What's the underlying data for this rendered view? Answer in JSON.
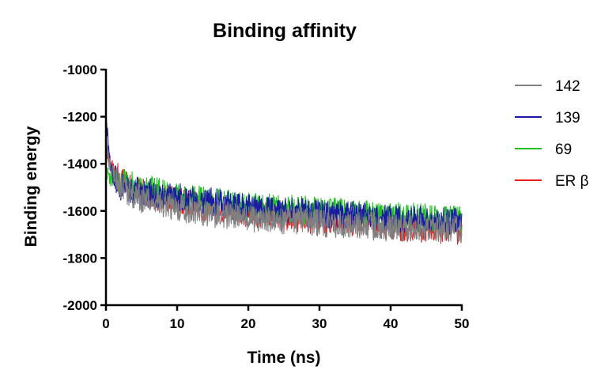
{
  "chart_data": {
    "type": "line",
    "title": "Binding affinity",
    "xlabel": "Time (ns)",
    "ylabel": "Binding energy",
    "xlim": [
      0,
      50
    ],
    "ylim": [
      -2000,
      -1000
    ],
    "xticks": [
      0,
      10,
      20,
      30,
      40,
      50
    ],
    "yticks": [
      -1000,
      -1200,
      -1400,
      -1600,
      -1800,
      -2000
    ],
    "xtick_labels": [
      "0",
      "10",
      "20",
      "30",
      "40",
      "50"
    ],
    "ytick_labels": [
      "-1000",
      "-1200",
      "-1400",
      "-1600",
      "-1800",
      "-2000"
    ],
    "grid": false,
    "legend_position": "right",
    "series": [
      {
        "name": "142",
        "color": "#808080",
        "x": [
          0,
          0.5,
          1,
          2,
          3,
          5,
          7.5,
          10,
          15,
          20,
          25,
          30,
          35,
          40,
          45,
          50
        ],
        "values": [
          -1330,
          -1400,
          -1440,
          -1490,
          -1520,
          -1550,
          -1570,
          -1590,
          -1610,
          -1630,
          -1640,
          -1650,
          -1660,
          -1670,
          -1675,
          -1680
        ]
      },
      {
        "name": "139",
        "color": "#1a1aa6",
        "x": [
          0,
          0.5,
          1,
          2,
          3,
          5,
          7.5,
          10,
          15,
          20,
          25,
          30,
          35,
          40,
          45,
          50
        ],
        "values": [
          -1200,
          -1380,
          -1450,
          -1500,
          -1510,
          -1520,
          -1530,
          -1540,
          -1560,
          -1590,
          -1600,
          -1610,
          -1620,
          -1630,
          -1640,
          -1650
        ]
      },
      {
        "name": "69",
        "color": "#22c022",
        "x": [
          0,
          0.5,
          1,
          2,
          3,
          5,
          7.5,
          10,
          15,
          20,
          25,
          30,
          35,
          40,
          45,
          50
        ],
        "values": [
          -1440,
          -1460,
          -1470,
          -1480,
          -1490,
          -1500,
          -1520,
          -1540,
          -1560,
          -1580,
          -1590,
          -1600,
          -1610,
          -1620,
          -1630,
          -1640
        ]
      },
      {
        "name": "ER β",
        "color": "#ee1c1c",
        "x": [
          0,
          0.5,
          1,
          2,
          3,
          5,
          7.5,
          10,
          15,
          20,
          25,
          30,
          35,
          40,
          45,
          50
        ],
        "values": [
          -1350,
          -1390,
          -1430,
          -1470,
          -1490,
          -1520,
          -1540,
          -1560,
          -1590,
          -1610,
          -1630,
          -1640,
          -1650,
          -1665,
          -1675,
          -1685
        ]
      }
    ],
    "noise_amplitude": 60
  }
}
